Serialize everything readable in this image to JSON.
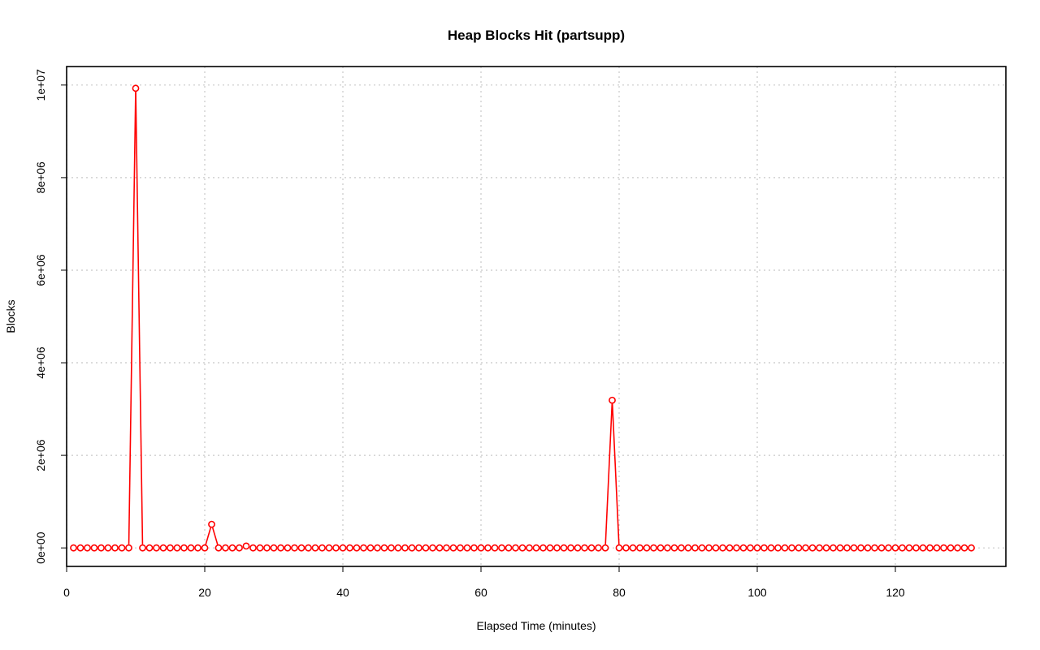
{
  "chart_data": {
    "type": "line",
    "title": "Heap Blocks Hit (partsupp)",
    "xlabel": "Elapsed Time (minutes)",
    "ylabel": "Blocks",
    "xlim": [
      0,
      136
    ],
    "ylim": [
      -400000,
      10400000
    ],
    "x_ticks": [
      0,
      20,
      40,
      60,
      80,
      100,
      120
    ],
    "x_tick_labels": [
      "0",
      "20",
      "40",
      "60",
      "80",
      "100",
      "120"
    ],
    "y_ticks": [
      0,
      2000000,
      4000000,
      6000000,
      8000000,
      10000000
    ],
    "y_tick_labels": [
      "0e+00",
      "2e+06",
      "4e+06",
      "6e+06",
      "8e+06",
      "1e+07"
    ],
    "grid": true,
    "series": [
      {
        "color": "#ff0000",
        "style": "line-with-open-circles",
        "x": [
          1,
          2,
          3,
          4,
          5,
          6,
          7,
          8,
          9,
          10,
          11,
          12,
          13,
          14,
          15,
          16,
          17,
          18,
          19,
          20,
          21,
          22,
          23,
          24,
          25,
          26,
          27,
          28,
          29,
          30,
          31,
          32,
          33,
          34,
          35,
          36,
          37,
          38,
          39,
          40,
          41,
          42,
          43,
          44,
          45,
          46,
          47,
          48,
          49,
          50,
          51,
          52,
          53,
          54,
          55,
          56,
          57,
          58,
          59,
          60,
          61,
          62,
          63,
          64,
          65,
          66,
          67,
          68,
          69,
          70,
          71,
          72,
          73,
          74,
          75,
          76,
          77,
          78,
          79,
          80,
          81,
          82,
          83,
          84,
          85,
          86,
          87,
          88,
          89,
          90,
          91,
          92,
          93,
          94,
          95,
          96,
          97,
          98,
          99,
          100,
          101,
          102,
          103,
          104,
          105,
          106,
          107,
          108,
          109,
          110,
          111,
          112,
          113,
          114,
          115,
          116,
          117,
          118,
          119,
          120,
          121,
          122,
          123,
          124,
          125,
          126,
          127,
          128,
          129,
          130,
          131
        ],
        "y": [
          0,
          0,
          0,
          0,
          0,
          0,
          0,
          0,
          0,
          9930000,
          0,
          0,
          0,
          0,
          0,
          0,
          0,
          0,
          0,
          0,
          510000,
          0,
          0,
          0,
          0,
          40000,
          0,
          0,
          0,
          0,
          0,
          0,
          0,
          0,
          0,
          0,
          0,
          0,
          0,
          0,
          0,
          0,
          0,
          0,
          0,
          0,
          0,
          0,
          0,
          0,
          0,
          0,
          0,
          0,
          0,
          0,
          0,
          0,
          0,
          0,
          0,
          0,
          0,
          0,
          0,
          0,
          0,
          0,
          0,
          0,
          0,
          0,
          0,
          0,
          0,
          0,
          0,
          0,
          3190000,
          0,
          0,
          0,
          0,
          0,
          0,
          0,
          0,
          0,
          0,
          0,
          0,
          0,
          0,
          0,
          0,
          0,
          0,
          0,
          0,
          0,
          0,
          0,
          0,
          0,
          0,
          0,
          0,
          0,
          0,
          0,
          0,
          0,
          0,
          0,
          0,
          0,
          0,
          0,
          0,
          0,
          0,
          0,
          0,
          0,
          0,
          0,
          0,
          0,
          0,
          0,
          0
        ]
      }
    ]
  }
}
